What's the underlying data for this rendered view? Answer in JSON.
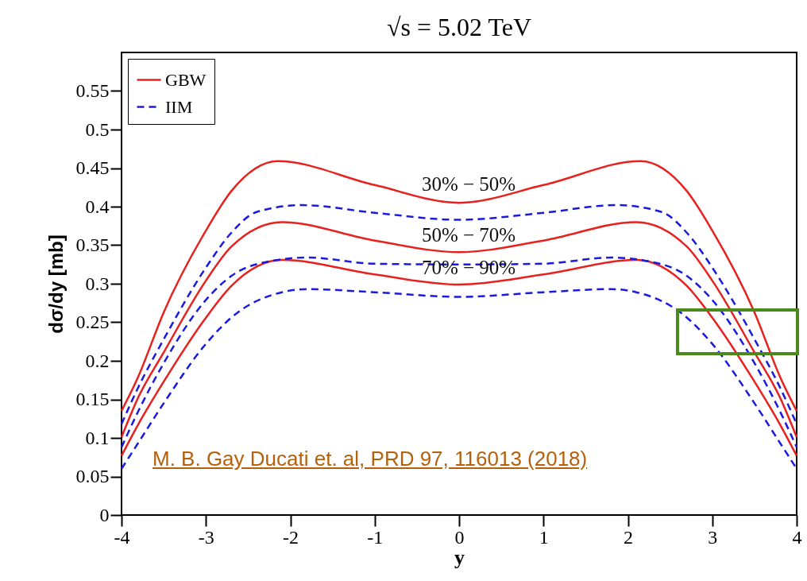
{
  "chart_data": {
    "type": "line",
    "title": "√s = 5.02 TeV",
    "xlabel": "y",
    "ylabel": "dσ/dy [mb]",
    "xlim": [
      -4,
      4
    ],
    "xticks": [
      -4,
      -3,
      -2,
      -1,
      0,
      1,
      2,
      3,
      4
    ],
    "ylim": [
      0,
      0.6
    ],
    "yticks": [
      0,
      0.05,
      0.1,
      0.15,
      0.2,
      0.25,
      0.3,
      0.35,
      0.4,
      0.45,
      0.5,
      0.55
    ],
    "grid": false,
    "legend": "top left",
    "marker": "none",
    "series": [
      {
        "name": "GBW",
        "color": "#e8211f",
        "line_style": "solid",
        "x": [
          -4,
          -3.8,
          -3.5,
          -3,
          -2.7,
          -2.15,
          -1,
          0,
          1,
          2.15,
          2.7,
          3,
          3.5,
          3.8,
          4
        ],
        "values": [
          0.135,
          0.18,
          0.263,
          0.369,
          0.42,
          0.459,
          0.428,
          0.405,
          0.428,
          0.459,
          0.42,
          0.369,
          0.263,
          0.18,
          0.135
        ]
      },
      {
        "color": "#e8211f",
        "line_style": "solid",
        "x": [
          -4,
          -3.8,
          -3.5,
          -3,
          -2.7,
          -2.1,
          -1,
          0,
          1,
          2.1,
          2.7,
          3,
          3.5,
          3.8,
          4
        ],
        "values": [
          0.101,
          0.153,
          0.211,
          0.304,
          0.348,
          0.38,
          0.356,
          0.341,
          0.356,
          0.38,
          0.348,
          0.304,
          0.211,
          0.153,
          0.101
        ]
      },
      {
        "color": "#e8211f",
        "line_style": "solid",
        "x": [
          -4,
          -3.8,
          -3.5,
          -3,
          -2.7,
          -2.1,
          -1,
          0,
          1,
          2.1,
          2.7,
          3,
          3.5,
          3.8,
          4
        ],
        "values": [
          0.077,
          0.118,
          0.173,
          0.256,
          0.297,
          0.331,
          0.312,
          0.299,
          0.312,
          0.331,
          0.297,
          0.256,
          0.173,
          0.118,
          0.077
        ]
      },
      {
        "name": "IIM",
        "color": "#1a1ae0",
        "line_style": "dashed",
        "x": [
          -4,
          -3.8,
          -3.5,
          -3,
          -2.7,
          -2.4,
          -1.86,
          -1,
          0,
          1,
          1.86,
          2.4,
          2.7,
          3,
          3.5,
          3.8,
          4
        ],
        "values": [
          0.118,
          0.166,
          0.228,
          0.321,
          0.366,
          0.393,
          0.402,
          0.392,
          0.383,
          0.392,
          0.402,
          0.393,
          0.366,
          0.321,
          0.228,
          0.166,
          0.118
        ]
      },
      {
        "color": "#1a1ae0",
        "line_style": "dashed",
        "x": [
          -4,
          -3.8,
          -3.5,
          -3,
          -2.7,
          -2.2,
          -1.8,
          -1,
          0,
          1,
          1.8,
          2.2,
          2.7,
          3,
          3.5,
          3.8,
          4
        ],
        "values": [
          0.088,
          0.135,
          0.197,
          0.279,
          0.31,
          0.33,
          0.334,
          0.326,
          0.325,
          0.326,
          0.334,
          0.33,
          0.31,
          0.279,
          0.197,
          0.135,
          0.088
        ]
      },
      {
        "color": "#1a1ae0",
        "line_style": "dashed",
        "x": [
          -4,
          -3.8,
          -3.5,
          -3,
          -2.7,
          -2.1,
          -1.8,
          -1,
          0,
          1,
          1.8,
          2.1,
          2.7,
          3,
          3.5,
          3.8,
          4
        ],
        "values": [
          0.06,
          0.094,
          0.145,
          0.222,
          0.256,
          0.289,
          0.293,
          0.289,
          0.283,
          0.289,
          0.293,
          0.289,
          0.256,
          0.222,
          0.145,
          0.094,
          0.06
        ]
      }
    ],
    "annotations": [
      "30% − 50%",
      "50% − 70%",
      "70% − 90%",
      "M. B. Gay Ducati et. al, PRD 97, 116013 (2018)"
    ]
  }
}
